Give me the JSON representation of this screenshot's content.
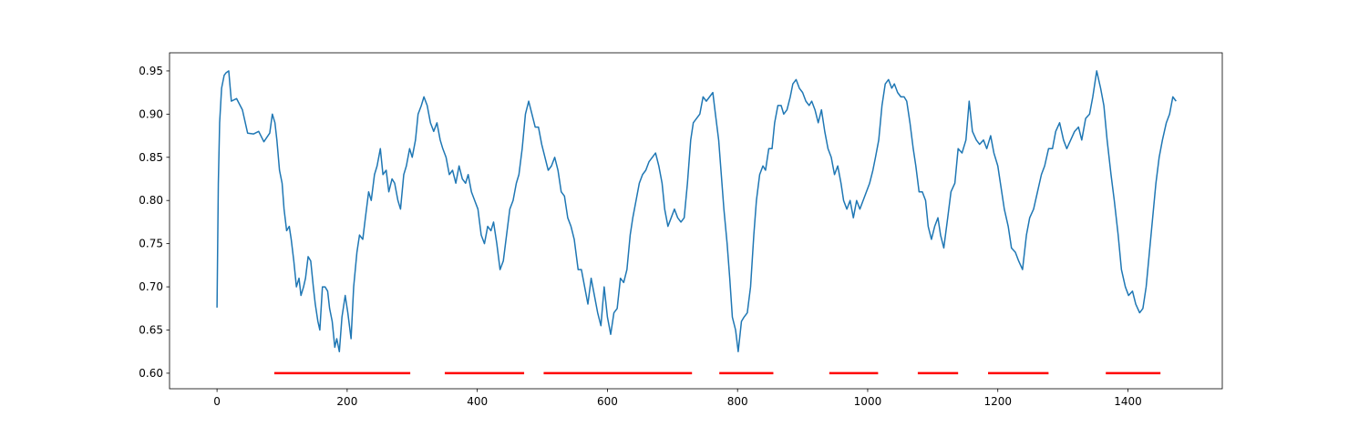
{
  "chart_data": {
    "type": "line",
    "xlim": [
      -73,
      1545
    ],
    "ylim": [
      0.582,
      0.971
    ],
    "xticks": [
      0,
      200,
      400,
      600,
      800,
      1000,
      1200,
      1400
    ],
    "yticks": [
      {
        "value": 0.6,
        "label": "0.60"
      },
      0.65,
      {
        "value": 0.7,
        "label": "0.70"
      },
      0.75,
      {
        "value": 0.8,
        "label": "0.80"
      },
      0.85,
      {
        "value": 0.9,
        "label": "0.90"
      },
      0.95
    ],
    "series": [
      {
        "color": "#1f77b4",
        "x": [
          0,
          2,
          4,
          7,
          11,
          14,
          18,
          22,
          30,
          39,
          47,
          56,
          64,
          72,
          81,
          85,
          89,
          92,
          96,
          100,
          103,
          107,
          111,
          114,
          118,
          122,
          126,
          129,
          133,
          136,
          140,
          144,
          148,
          151,
          155,
          158,
          162,
          166,
          170,
          173,
          177,
          181,
          184,
          188,
          192,
          197,
          201,
          206,
          210,
          215,
          219,
          224,
          228,
          233,
          237,
          242,
          246,
          251,
          255,
          260,
          264,
          269,
          273,
          278,
          282,
          287,
          291,
          296,
          300,
          305,
          309,
          314,
          318,
          323,
          328,
          333,
          338,
          343,
          347,
          352,
          357,
          362,
          367,
          372,
          377,
          382,
          386,
          391,
          396,
          401,
          406,
          411,
          416,
          421,
          425,
          430,
          435,
          440,
          445,
          450,
          455,
          460,
          464,
          469,
          474,
          479,
          484,
          489,
          494,
          499,
          504,
          509,
          514,
          519,
          524,
          529,
          534,
          539,
          544,
          549,
          555,
          560,
          565,
          570,
          575,
          580,
          585,
          590,
          595,
          600,
          605,
          610,
          615,
          620,
          625,
          630,
          635,
          639,
          644,
          649,
          654,
          659,
          664,
          669,
          674,
          679,
          684,
          688,
          693,
          698,
          703,
          708,
          713,
          718,
          723,
          728,
          732,
          737,
          742,
          747,
          752,
          757,
          762,
          766,
          771,
          775,
          779,
          784,
          788,
          792,
          797,
          801,
          806,
          810,
          815,
          820,
          825,
          829,
          834,
          839,
          843,
          848,
          853,
          857,
          862,
          867,
          871,
          876,
          881,
          885,
          890,
          895,
          900,
          905,
          910,
          914,
          919,
          924,
          929,
          934,
          939,
          944,
          949,
          954,
          959,
          963,
          968,
          973,
          978,
          983,
          988,
          993,
          998,
          1003,
          1008,
          1012,
          1017,
          1022,
          1027,
          1032,
          1037,
          1041,
          1046,
          1051,
          1056,
          1060,
          1065,
          1070,
          1074,
          1079,
          1084,
          1089,
          1093,
          1098,
          1103,
          1108,
          1112,
          1117,
          1123,
          1128,
          1134,
          1139,
          1145,
          1151,
          1156,
          1161,
          1167,
          1172,
          1178,
          1183,
          1189,
          1194,
          1200,
          1205,
          1210,
          1216,
          1221,
          1227,
          1232,
          1238,
          1244,
          1249,
          1255,
          1261,
          1267,
          1272,
          1278,
          1284,
          1289,
          1295,
          1301,
          1306,
          1312,
          1318,
          1324,
          1329,
          1335,
          1341,
          1346,
          1352,
          1358,
          1363,
          1368,
          1374,
          1379,
          1385,
          1390,
          1396,
          1401,
          1407,
          1412,
          1418,
          1423,
          1428,
          1433,
          1438,
          1443,
          1448,
          1453,
          1459,
          1464,
          1469,
          1474
        ],
        "values": [
          0.676,
          0.82,
          0.89,
          0.93,
          0.945,
          0.948,
          0.95,
          0.915,
          0.918,
          0.905,
          0.878,
          0.877,
          0.88,
          0.868,
          0.878,
          0.9,
          0.89,
          0.87,
          0.835,
          0.82,
          0.79,
          0.765,
          0.77,
          0.755,
          0.73,
          0.7,
          0.71,
          0.69,
          0.7,
          0.71,
          0.735,
          0.73,
          0.7,
          0.68,
          0.66,
          0.65,
          0.7,
          0.7,
          0.695,
          0.675,
          0.66,
          0.63,
          0.64,
          0.625,
          0.665,
          0.69,
          0.67,
          0.64,
          0.7,
          0.74,
          0.76,
          0.755,
          0.78,
          0.81,
          0.8,
          0.83,
          0.84,
          0.86,
          0.83,
          0.835,
          0.81,
          0.825,
          0.82,
          0.8,
          0.79,
          0.83,
          0.84,
          0.86,
          0.85,
          0.87,
          0.9,
          0.91,
          0.92,
          0.91,
          0.89,
          0.88,
          0.89,
          0.87,
          0.86,
          0.85,
          0.83,
          0.835,
          0.82,
          0.84,
          0.825,
          0.82,
          0.83,
          0.81,
          0.8,
          0.79,
          0.76,
          0.75,
          0.77,
          0.765,
          0.775,
          0.75,
          0.72,
          0.73,
          0.76,
          0.79,
          0.8,
          0.82,
          0.83,
          0.86,
          0.9,
          0.915,
          0.9,
          0.885,
          0.885,
          0.865,
          0.85,
          0.835,
          0.84,
          0.85,
          0.835,
          0.81,
          0.805,
          0.78,
          0.77,
          0.755,
          0.72,
          0.72,
          0.7,
          0.68,
          0.71,
          0.69,
          0.67,
          0.655,
          0.7,
          0.665,
          0.645,
          0.67,
          0.675,
          0.71,
          0.705,
          0.72,
          0.76,
          0.78,
          0.8,
          0.82,
          0.83,
          0.835,
          0.845,
          0.85,
          0.855,
          0.84,
          0.82,
          0.79,
          0.77,
          0.78,
          0.79,
          0.78,
          0.775,
          0.78,
          0.82,
          0.87,
          0.89,
          0.895,
          0.9,
          0.92,
          0.915,
          0.92,
          0.925,
          0.9,
          0.87,
          0.83,
          0.79,
          0.75,
          0.71,
          0.665,
          0.65,
          0.625,
          0.66,
          0.665,
          0.67,
          0.7,
          0.76,
          0.8,
          0.83,
          0.84,
          0.835,
          0.86,
          0.86,
          0.89,
          0.91,
          0.91,
          0.9,
          0.905,
          0.92,
          0.935,
          0.94,
          0.93,
          0.925,
          0.915,
          0.91,
          0.915,
          0.905,
          0.89,
          0.905,
          0.88,
          0.86,
          0.85,
          0.83,
          0.84,
          0.82,
          0.8,
          0.79,
          0.8,
          0.78,
          0.8,
          0.79,
          0.8,
          0.81,
          0.82,
          0.835,
          0.85,
          0.87,
          0.91,
          0.935,
          0.94,
          0.93,
          0.935,
          0.925,
          0.92,
          0.92,
          0.915,
          0.89,
          0.86,
          0.84,
          0.81,
          0.81,
          0.8,
          0.77,
          0.755,
          0.77,
          0.78,
          0.76,
          0.745,
          0.78,
          0.81,
          0.82,
          0.86,
          0.855,
          0.87,
          0.915,
          0.88,
          0.87,
          0.865,
          0.87,
          0.86,
          0.875,
          0.855,
          0.84,
          0.815,
          0.79,
          0.77,
          0.745,
          0.74,
          0.73,
          0.72,
          0.76,
          0.78,
          0.79,
          0.81,
          0.83,
          0.84,
          0.86,
          0.86,
          0.88,
          0.89,
          0.87,
          0.86,
          0.87,
          0.88,
          0.885,
          0.87,
          0.895,
          0.9,
          0.92,
          0.95,
          0.93,
          0.91,
          0.87,
          0.83,
          0.8,
          0.76,
          0.72,
          0.7,
          0.69,
          0.695,
          0.68,
          0.67,
          0.675,
          0.7,
          0.74,
          0.78,
          0.82,
          0.85,
          0.87,
          0.89,
          0.9,
          0.92,
          0.915
        ]
      },
      {
        "color": "#ff0000",
        "x": [
          88,
          297
        ],
        "values": [
          0.6,
          0.6
        ]
      },
      {
        "color": "#ff0000",
        "x": [
          350,
          472
        ],
        "values": [
          0.6,
          0.6
        ]
      },
      {
        "color": "#ff0000",
        "x": [
          502,
          730
        ],
        "values": [
          0.6,
          0.6
        ]
      },
      {
        "color": "#ff0000",
        "x": [
          772,
          855
        ],
        "values": [
          0.6,
          0.6
        ]
      },
      {
        "color": "#ff0000",
        "x": [
          941,
          1016
        ],
        "values": [
          0.6,
          0.6
        ]
      },
      {
        "color": "#ff0000",
        "x": [
          1077,
          1139
        ],
        "values": [
          0.6,
          0.6
        ]
      },
      {
        "color": "#ff0000",
        "x": [
          1185,
          1278
        ],
        "values": [
          0.6,
          0.6
        ]
      },
      {
        "color": "#ff0000",
        "x": [
          1366,
          1450
        ],
        "values": [
          0.6,
          0.6
        ]
      }
    ]
  }
}
